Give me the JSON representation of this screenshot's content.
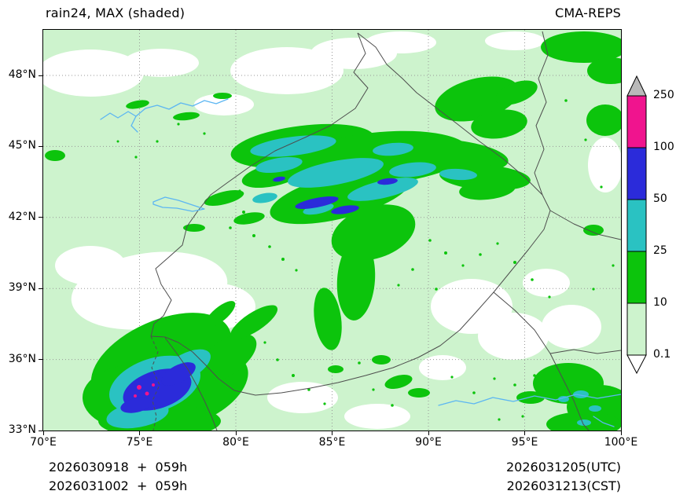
{
  "header": {
    "title_left": "rain24, MAX (shaded)",
    "title_right": "CMA-REPS"
  },
  "axes": {
    "x_ticks": [
      "70°E",
      "75°E",
      "80°E",
      "85°E",
      "90°E",
      "95°E",
      "100°E"
    ],
    "y_ticks": [
      "48°N",
      "45°N",
      "42°N",
      "39°N",
      "36°N",
      "33°N"
    ]
  },
  "colorbar": {
    "labels": [
      "250",
      "100",
      "50",
      "25",
      "10",
      "0.1"
    ]
  },
  "legend": {
    "thresholds_mm": [
      0.1,
      10,
      25,
      50,
      100,
      250
    ],
    "colors": {
      "below_min": "#ffffff",
      "light": "#cdf3cd",
      "green": "#0cc40c",
      "teal": "#2ac2c2",
      "blue": "#2b2bda",
      "magenta": "#f0148e",
      "above_max": "#b9b9b9"
    }
  },
  "footer": {
    "left_line1": "2026030918  +  059h",
    "left_line2": "2026031002  +  059h",
    "right_line1": "2026031205(UTC)",
    "right_line2": "2026031213(CST)"
  }
}
